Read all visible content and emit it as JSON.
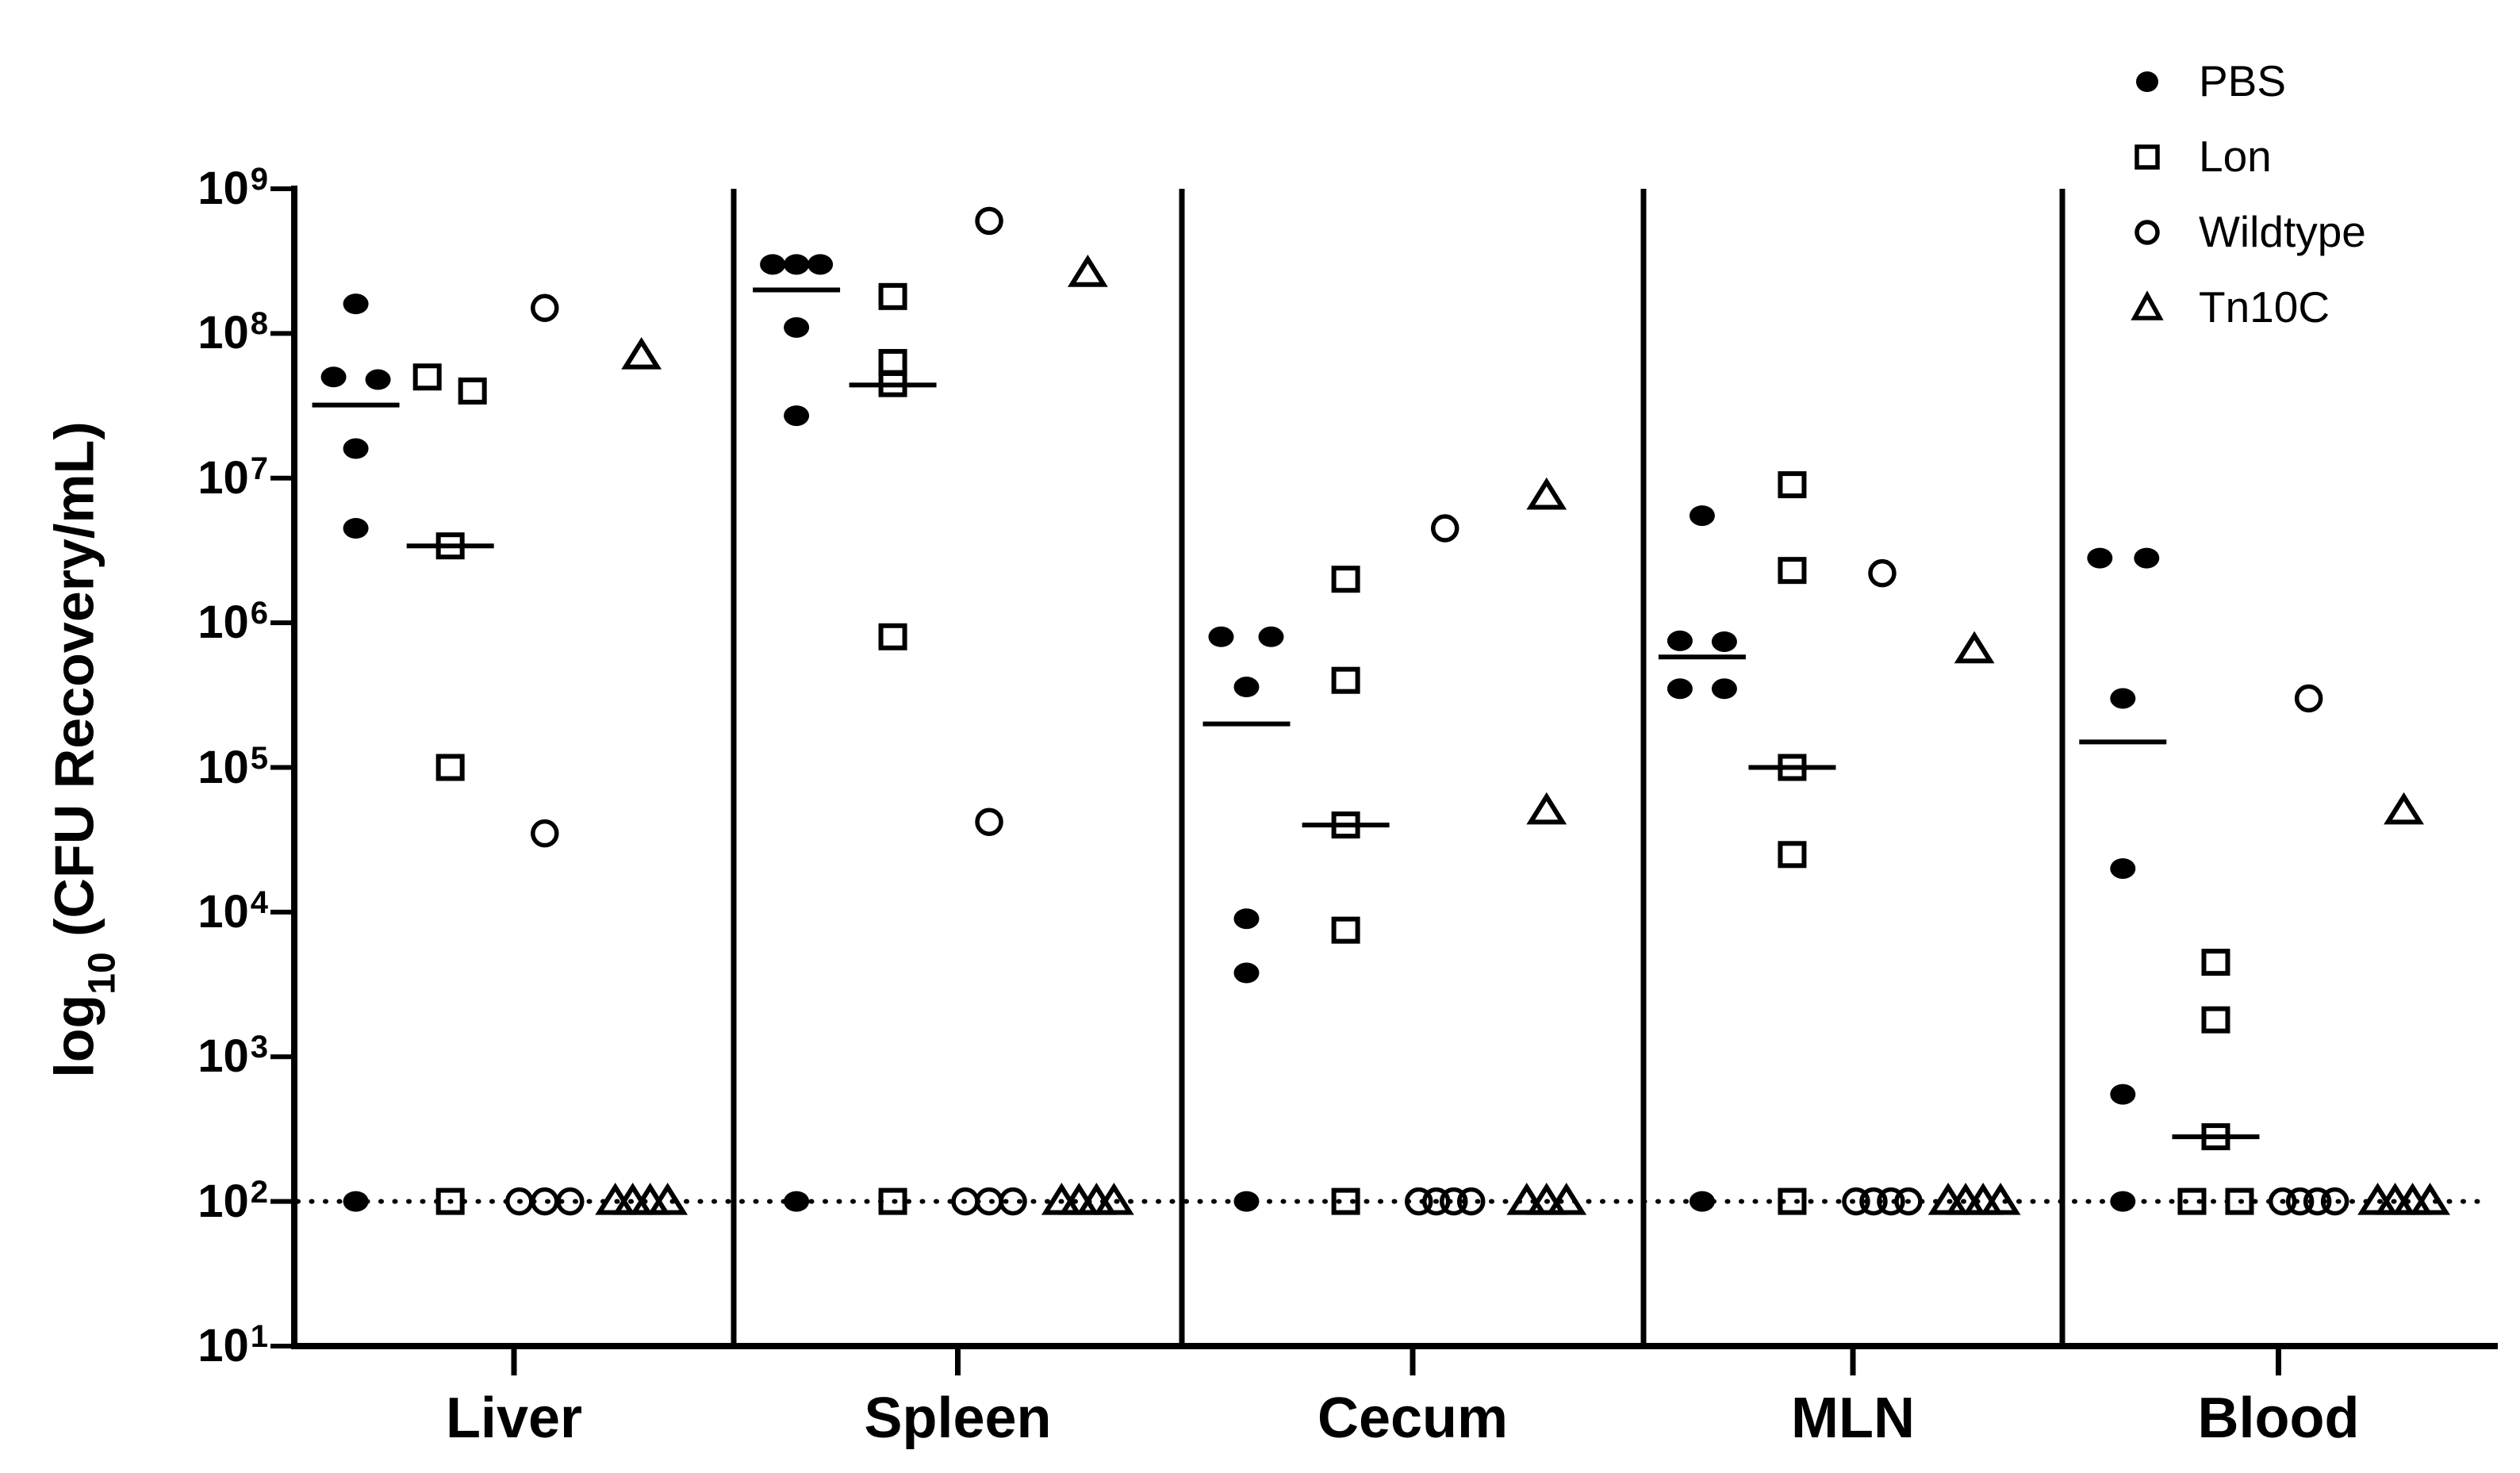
{
  "figure": {
    "background": "#ffffff",
    "ink": "#000000"
  },
  "chart_data": {
    "type": "scatter",
    "yscale": "log10",
    "ylim_exponents": [
      1,
      9
    ],
    "grid": false,
    "legend_position": "top-right",
    "ylabel_parts": {
      "prefix": "log",
      "sub": "10",
      "suffix": " (CFU Recovery/mL)"
    },
    "y_ticks": [
      {
        "base": "10",
        "exp": "9"
      },
      {
        "base": "10",
        "exp": "8"
      },
      {
        "base": "10",
        "exp": "7"
      },
      {
        "base": "10",
        "exp": "6"
      },
      {
        "base": "10",
        "exp": "5"
      },
      {
        "base": "10",
        "exp": "4"
      },
      {
        "base": "10",
        "exp": "3"
      },
      {
        "base": "10",
        "exp": "2"
      },
      {
        "base": "10",
        "exp": "1"
      }
    ],
    "detection_limit": {
      "value": 100,
      "line_style": "dotted"
    },
    "legend": [
      {
        "label": "PBS",
        "marker": "filled-circle"
      },
      {
        "label": "Lon",
        "marker": "open-square"
      },
      {
        "label": "Wildtype",
        "marker": "open-circle"
      },
      {
        "label": "Tn10C",
        "marker": "open-triangle"
      }
    ],
    "categories": [
      "Liver",
      "Spleen",
      "Cecum",
      "MLN",
      "Blood"
    ],
    "organs": [
      {
        "name": "Liver",
        "groups": [
          {
            "group": "PBS",
            "marker": "filled-circle",
            "median": 32000000.0,
            "points": [
              {
                "v": 160000000.0
              },
              {
                "v": 50000000.0,
                "dx": -28
              },
              {
                "v": 48000000.0,
                "dx": 28
              },
              {
                "v": 16000000.0
              },
              {
                "v": 4500000.0
              },
              {
                "v": 100
              }
            ]
          },
          {
            "group": "Lon",
            "marker": "open-square",
            "median": 3400000.0,
            "points": [
              {
                "v": 50000000.0,
                "dx": -29
              },
              {
                "v": 40000000.0,
                "dx": 28
              },
              {
                "v": 3400000.0
              },
              {
                "v": 100000.0
              },
              {
                "v": 100
              }
            ]
          },
          {
            "group": "Wildtype",
            "marker": "open-circle",
            "points": [
              {
                "v": 150000000.0
              },
              {
                "v": 35000.0
              },
              {
                "v": 100,
                "dx": -32
              },
              {
                "v": 100
              },
              {
                "v": 100,
                "dx": 32
              }
            ]
          },
          {
            "group": "Tn10C",
            "marker": "open-triangle",
            "points": [
              {
                "v": 70000000.0
              },
              {
                "v": 100,
                "dx": -33
              },
              {
                "v": 100,
                "dx": -11
              },
              {
                "v": 100,
                "dx": 11
              },
              {
                "v": 100,
                "dx": 33
              }
            ]
          }
        ]
      },
      {
        "name": "Spleen",
        "groups": [
          {
            "group": "PBS",
            "marker": "filled-circle",
            "median": 200000000.0,
            "points": [
              {
                "v": 300000000.0,
                "dx": -30
              },
              {
                "v": 300000000.0
              },
              {
                "v": 300000000.0,
                "dx": 30
              },
              {
                "v": 110000000.0
              },
              {
                "v": 27000000.0
              },
              {
                "v": 100
              }
            ]
          },
          {
            "group": "Lon",
            "marker": "open-square",
            "median": 44000000.0,
            "points": [
              {
                "v": 180000000.0
              },
              {
                "v": 63000000.0
              },
              {
                "v": 45000000.0
              },
              {
                "v": 800000.0
              },
              {
                "v": 100
              }
            ]
          },
          {
            "group": "Wildtype",
            "marker": "open-circle",
            "points": [
              {
                "v": 600000000.0
              },
              {
                "v": 42000.0
              },
              {
                "v": 100,
                "dx": -30
              },
              {
                "v": 100
              },
              {
                "v": 100,
                "dx": 30
              }
            ]
          },
          {
            "group": "Tn10C",
            "marker": "open-triangle",
            "points": [
              {
                "v": 260000000.0
              },
              {
                "v": 100,
                "dx": -33
              },
              {
                "v": 100,
                "dx": -11
              },
              {
                "v": 100,
                "dx": 11
              },
              {
                "v": 100,
                "dx": 33
              }
            ]
          }
        ]
      },
      {
        "name": "Cecum",
        "groups": [
          {
            "group": "PBS",
            "marker": "filled-circle",
            "median": 200000.0,
            "points": [
              {
                "v": 800000.0,
                "dx": -32
              },
              {
                "v": 800000.0,
                "dx": 31
              },
              {
                "v": 360000.0
              },
              {
                "v": 9000.0
              },
              {
                "v": 3800.0
              },
              {
                "v": 100
              }
            ]
          },
          {
            "group": "Lon",
            "marker": "open-square",
            "median": 40000.0,
            "points": [
              {
                "v": 2000000.0
              },
              {
                "v": 400000.0
              },
              {
                "v": 40000.0
              },
              {
                "v": 7500.0
              },
              {
                "v": 100
              }
            ]
          },
          {
            "group": "Wildtype",
            "marker": "open-circle",
            "points": [
              {
                "v": 4500000.0
              },
              {
                "v": 100,
                "dx": -33
              },
              {
                "v": 100,
                "dx": -11
              },
              {
                "v": 100,
                "dx": 11
              },
              {
                "v": 100,
                "dx": 33
              }
            ]
          },
          {
            "group": "Tn10C",
            "marker": "open-triangle",
            "points": [
              {
                "v": 7500000.0
              },
              {
                "v": 50000.0
              },
              {
                "v": 100,
                "dx": -25
              },
              {
                "v": 100
              },
              {
                "v": 100,
                "dx": 25
              }
            ]
          }
        ]
      },
      {
        "name": "MLN",
        "groups": [
          {
            "group": "PBS",
            "marker": "filled-circle",
            "median": 580000.0,
            "points": [
              {
                "v": 5500000.0
              },
              {
                "v": 750000.0,
                "dx": -28
              },
              {
                "v": 740000.0,
                "dx": 28
              },
              {
                "v": 350000.0,
                "dx": -28
              },
              {
                "v": 350000.0,
                "dx": 28
              },
              {
                "v": 100
              }
            ]
          },
          {
            "group": "Lon",
            "marker": "open-square",
            "median": 100000.0,
            "points": [
              {
                "v": 9000000.0
              },
              {
                "v": 2300000.0
              },
              {
                "v": 100000.0
              },
              {
                "v": 25000.0
              },
              {
                "v": 100
              }
            ]
          },
          {
            "group": "Wildtype",
            "marker": "open-circle",
            "points": [
              {
                "v": 2200000.0
              },
              {
                "v": 100,
                "dx": -33
              },
              {
                "v": 100,
                "dx": -11
              },
              {
                "v": 100,
                "dx": 11
              },
              {
                "v": 100,
                "dx": 33
              }
            ]
          },
          {
            "group": "Tn10C",
            "marker": "open-triangle",
            "points": [
              {
                "v": 650000.0
              },
              {
                "v": 100,
                "dx": -33
              },
              {
                "v": 100,
                "dx": -11
              },
              {
                "v": 100,
                "dx": 11
              },
              {
                "v": 100,
                "dx": 33
              }
            ]
          }
        ]
      },
      {
        "name": "Blood",
        "groups": [
          {
            "group": "PBS",
            "marker": "filled-circle",
            "median": 150000.0,
            "points": [
              {
                "v": 2800000.0,
                "dx": -29
              },
              {
                "v": 2800000.0,
                "dx": 30
              },
              {
                "v": 300000.0
              },
              {
                "v": 20000.0
              },
              {
                "v": 550
              },
              {
                "v": 100
              }
            ]
          },
          {
            "group": "Lon",
            "marker": "open-square",
            "median": 280,
            "points": [
              {
                "v": 4500.0
              },
              {
                "v": 1800.0
              },
              {
                "v": 280
              },
              {
                "v": 100,
                "dx": -30
              },
              {
                "v": 100,
                "dx": 30
              }
            ]
          },
          {
            "group": "Wildtype",
            "marker": "open-circle",
            "points": [
              {
                "v": 300000.0
              },
              {
                "v": 100,
                "dx": -33
              },
              {
                "v": 100,
                "dx": -11
              },
              {
                "v": 100,
                "dx": 11
              },
              {
                "v": 100,
                "dx": 33
              }
            ]
          },
          {
            "group": "Tn10C",
            "marker": "open-triangle",
            "points": [
              {
                "v": 50000.0
              },
              {
                "v": 100,
                "dx": -33
              },
              {
                "v": 100,
                "dx": -11
              },
              {
                "v": 100,
                "dx": 11
              },
              {
                "v": 100,
                "dx": 33
              }
            ]
          }
        ]
      }
    ]
  }
}
